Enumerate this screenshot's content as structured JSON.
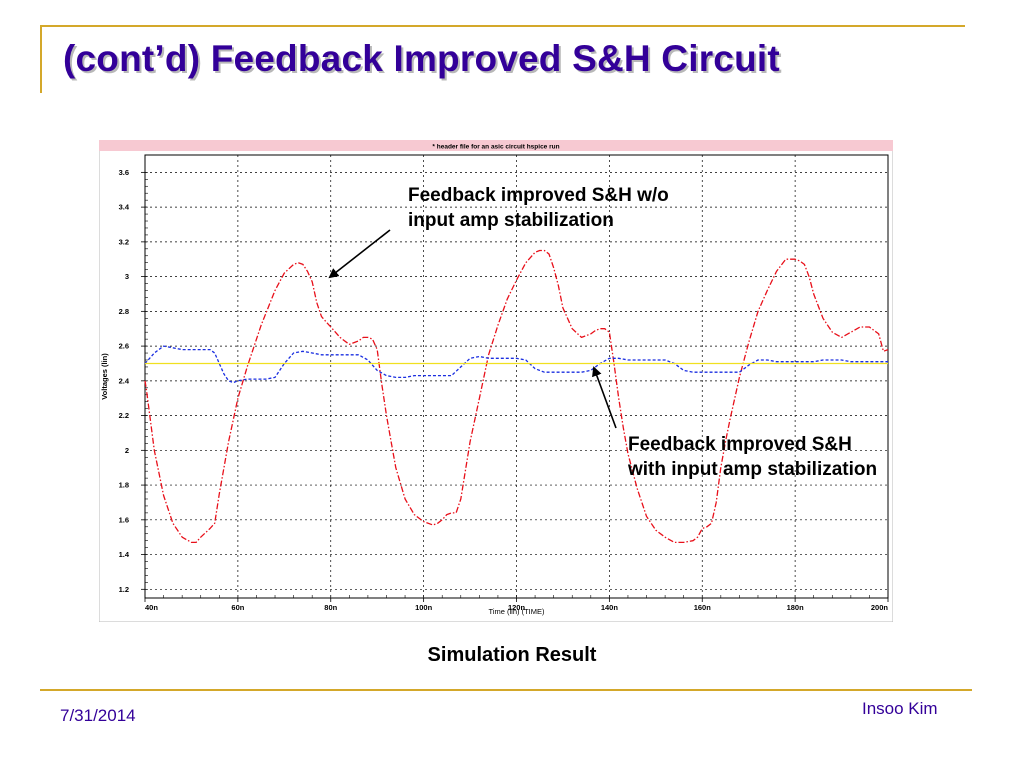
{
  "slide": {
    "title": "(cont’d) Feedback Improved S&H Circuit",
    "caption": "Simulation Result",
    "annotation_top_line1": "Feedback improved S&H w/o",
    "annotation_top_line2": "input amp stabilization",
    "annotation_bottom_line1": "Feedback improved S&H",
    "annotation_bottom_line2": "with input amp stabilization",
    "footer_date": "7/31/2014",
    "footer_author": "Insoo Kim"
  },
  "colors": {
    "title": "#330099",
    "accent_rule": "#d4a82a",
    "chart_header_band": "#f7c9d2",
    "series_red": "#e8101a",
    "series_blue": "#1a2ee0",
    "series_yellow": "#f0e020"
  },
  "chart_data": {
    "type": "line",
    "title": "* header file for an asic circuit hspice run",
    "xlabel": "Time (lin) (TIME)",
    "ylabel": "Voltages (lin)",
    "xlim": [
      40,
      200
    ],
    "ylim": [
      1.15,
      3.7
    ],
    "grid": true,
    "x_ticks": [
      40,
      60,
      80,
      100,
      120,
      140,
      160,
      180,
      200
    ],
    "x_tick_labels": [
      "40n",
      "60n",
      "80n",
      "100n",
      "120n",
      "140n",
      "160n",
      "180n",
      "200n"
    ],
    "y_ticks": [
      1.2,
      1.4,
      1.6,
      1.8,
      2,
      2.2,
      2.4,
      2.6,
      2.8,
      3,
      3.2,
      3.4,
      3.6
    ],
    "y_tick_labels": [
      "1.2",
      "1.4",
      "1.6",
      "1.8",
      "2",
      "2.2",
      "2.4",
      "2.6",
      "2.8",
      "3",
      "3.2",
      "3.4",
      "3.6"
    ],
    "series": [
      {
        "color": "#e8101a",
        "style": "dash-dot",
        "x": [
          40,
          40.3,
          42,
          44,
          46,
          48,
          50,
          51,
          52,
          54,
          55,
          56,
          58,
          60,
          62,
          65,
          68,
          70,
          72,
          73,
          74,
          75,
          76,
          77,
          78,
          79,
          80,
          82,
          84,
          86,
          87,
          88,
          89,
          90,
          91,
          92,
          93,
          94,
          96,
          98,
          100,
          102,
          103,
          104,
          105,
          106,
          107,
          108,
          110,
          112,
          114,
          116,
          118,
          120,
          122,
          124,
          125,
          126,
          127,
          128,
          129,
          130,
          132,
          134,
          136,
          137,
          138,
          139,
          140,
          141,
          142,
          143,
          144,
          146,
          148,
          150,
          152,
          154,
          156,
          158,
          159,
          160,
          161,
          162,
          163,
          164,
          165,
          166,
          168,
          170,
          172,
          174,
          176,
          178,
          180,
          181,
          182,
          183,
          184,
          186,
          188,
          190,
          192,
          194,
          196,
          198,
          199,
          200
        ],
        "y": [
          2.4,
          2.35,
          2.0,
          1.74,
          1.58,
          1.5,
          1.47,
          1.47,
          1.5,
          1.55,
          1.58,
          1.75,
          2.05,
          2.3,
          2.48,
          2.72,
          2.92,
          3.02,
          3.07,
          3.08,
          3.07,
          3.03,
          2.97,
          2.85,
          2.77,
          2.74,
          2.71,
          2.65,
          2.61,
          2.63,
          2.65,
          2.65,
          2.64,
          2.58,
          2.38,
          2.2,
          2.05,
          1.9,
          1.72,
          1.63,
          1.59,
          1.57,
          1.58,
          1.6,
          1.63,
          1.64,
          1.64,
          1.72,
          2.05,
          2.3,
          2.55,
          2.72,
          2.87,
          2.98,
          3.08,
          3.14,
          3.15,
          3.15,
          3.13,
          3.05,
          2.95,
          2.82,
          2.7,
          2.65,
          2.67,
          2.69,
          2.7,
          2.7,
          2.68,
          2.5,
          2.3,
          2.13,
          1.98,
          1.78,
          1.62,
          1.54,
          1.5,
          1.47,
          1.47,
          1.48,
          1.5,
          1.55,
          1.56,
          1.58,
          1.7,
          1.9,
          2.05,
          2.18,
          2.42,
          2.62,
          2.8,
          2.92,
          3.03,
          3.1,
          3.1,
          3.09,
          3.07,
          3.0,
          2.9,
          2.76,
          2.68,
          2.65,
          2.68,
          2.71,
          2.71,
          2.67,
          2.57,
          2.58
        ]
      },
      {
        "color": "#1a2ee0",
        "style": "dashed",
        "x": [
          40,
          42,
          44,
          46,
          48,
          50,
          52,
          54,
          55,
          56,
          57,
          58,
          59,
          60,
          62,
          64,
          66,
          68,
          70,
          72,
          74,
          76,
          78,
          80,
          82,
          84,
          86,
          88,
          90,
          92,
          94,
          96,
          98,
          100,
          102,
          104,
          106,
          108,
          110,
          112,
          114,
          116,
          118,
          120,
          122,
          124,
          126,
          128,
          130,
          132,
          134,
          136,
          138,
          140,
          142,
          144,
          146,
          148,
          150,
          152,
          154,
          156,
          158,
          160,
          162,
          164,
          166,
          168,
          170,
          172,
          174,
          176,
          178,
          180,
          182,
          184,
          186,
          188,
          190,
          192,
          194,
          196,
          198,
          200
        ],
        "y": [
          2.5,
          2.56,
          2.6,
          2.59,
          2.58,
          2.58,
          2.58,
          2.58,
          2.56,
          2.5,
          2.44,
          2.4,
          2.39,
          2.4,
          2.41,
          2.41,
          2.41,
          2.42,
          2.5,
          2.56,
          2.57,
          2.56,
          2.55,
          2.55,
          2.55,
          2.55,
          2.55,
          2.52,
          2.46,
          2.43,
          2.42,
          2.42,
          2.43,
          2.43,
          2.43,
          2.43,
          2.43,
          2.48,
          2.53,
          2.54,
          2.53,
          2.53,
          2.53,
          2.53,
          2.52,
          2.47,
          2.45,
          2.45,
          2.45,
          2.45,
          2.45,
          2.46,
          2.5,
          2.53,
          2.53,
          2.52,
          2.52,
          2.52,
          2.52,
          2.52,
          2.5,
          2.46,
          2.45,
          2.45,
          2.45,
          2.45,
          2.45,
          2.45,
          2.49,
          2.52,
          2.52,
          2.51,
          2.51,
          2.51,
          2.51,
          2.51,
          2.52,
          2.52,
          2.52,
          2.51,
          2.51,
          2.51,
          2.51,
          2.51
        ]
      },
      {
        "color": "#f0e020",
        "style": "solid",
        "x": [
          40,
          200
        ],
        "y": [
          2.5,
          2.5
        ]
      }
    ]
  }
}
